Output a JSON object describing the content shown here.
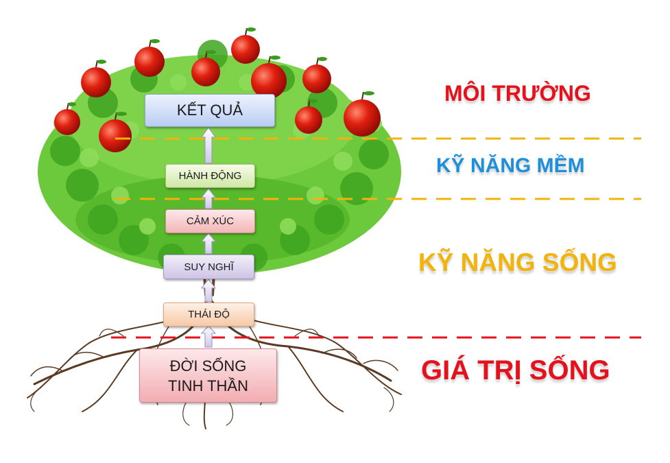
{
  "diagram": {
    "boxes": {
      "result": "KẾT QUẢ",
      "action": "HÀNH ĐỘNG",
      "emotion": "CẢM XÚC",
      "thinking": "SUY NGHĨ",
      "attitude": "THÁI ĐỘ",
      "spirit_line1": "ĐỜI SỐNG",
      "spirit_line2": "TINH THẦN"
    },
    "layers": {
      "environment": "MÔI TRƯỜNG",
      "soft_skills": "KỸ NĂNG MỀM",
      "life_skills": "KỸ NĂNG SỐNG",
      "life_values": "GIÁ TRỊ SỐNG"
    },
    "colors": {
      "environment": "#e5111c",
      "soft_skills": "#1f8fdc",
      "life_skills": "#f2b30c",
      "life_values": "#e5111c",
      "divider_gold": "#f2b30c",
      "divider_red": "#e5111c",
      "leaf": "#4fbf2a",
      "apple": "#e0200f",
      "root": "#5a3a22"
    },
    "icons": [
      "apple-icon",
      "leaf-icon",
      "root-icon",
      "arrow-up-icon"
    ]
  }
}
